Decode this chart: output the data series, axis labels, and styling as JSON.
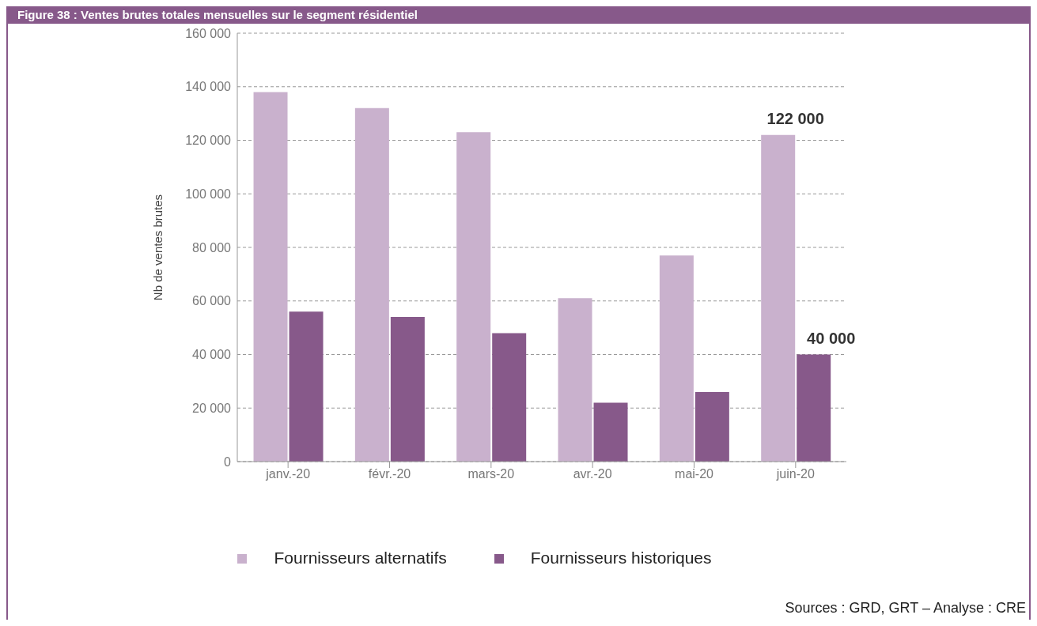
{
  "chart_data": {
    "type": "bar",
    "title": "Figure 38 : Ventes brutes totales mensuelles sur le segment résidentiel",
    "ylabel": "Nb de ventes brutes",
    "categories": [
      "janv.-20",
      "févr.-20",
      "mars-20",
      "avr.-20",
      "mai-20",
      "juin-20"
    ],
    "series": [
      {
        "name": "Fournisseurs alternatifs",
        "color": "#c9b1cd",
        "values": [
          138000,
          132000,
          123000,
          61000,
          77000,
          122000
        ],
        "value_labels": [
          null,
          null,
          null,
          null,
          null,
          "122 000"
        ]
      },
      {
        "name": "Fournisseurs historiques",
        "color": "#87598a",
        "values": [
          56000,
          54000,
          48000,
          22000,
          26000,
          40000
        ],
        "value_labels": [
          null,
          null,
          null,
          null,
          null,
          "40 000"
        ]
      }
    ],
    "ylim": [
      0,
      160000
    ],
    "yticks": [
      {
        "value": 0,
        "label": "0"
      },
      {
        "value": 20000,
        "label": "20 000"
      },
      {
        "value": 40000,
        "label": "40 000"
      },
      {
        "value": 60000,
        "label": "60 000"
      },
      {
        "value": 80000,
        "label": "80 000"
      },
      {
        "value": 100000,
        "label": "100 000"
      },
      {
        "value": 120000,
        "label": "120 000"
      },
      {
        "value": 140000,
        "label": "140 000"
      },
      {
        "value": 160000,
        "label": "160 000"
      }
    ],
    "grid": "y",
    "legend": "bottom",
    "annotations": [
      "Sources : GRD, GRT – Analyse : CRE"
    ]
  }
}
